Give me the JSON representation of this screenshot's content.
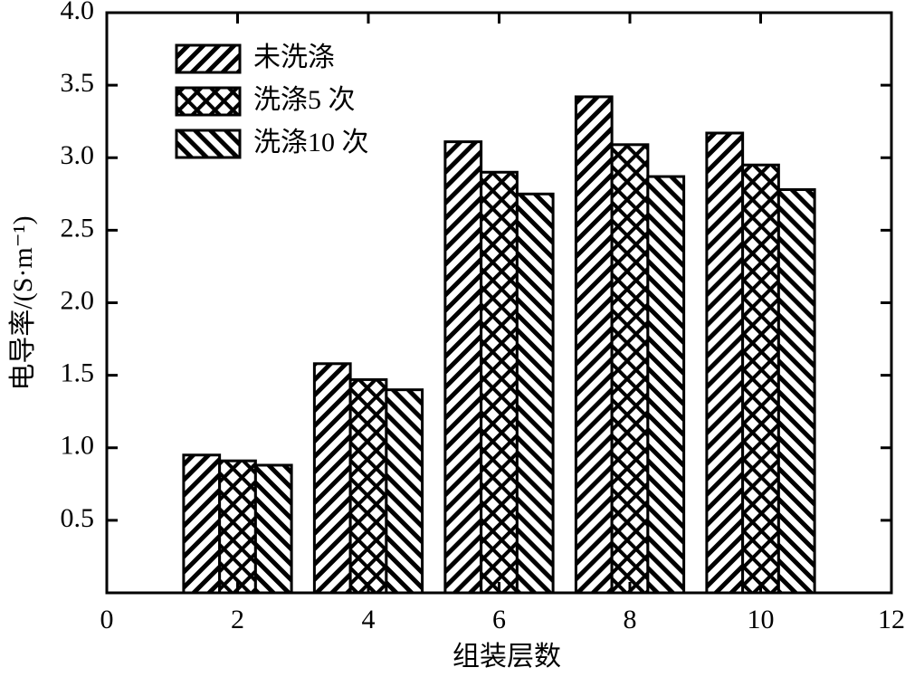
{
  "chart_data": {
    "type": "bar",
    "x_label": "组装层数",
    "y_label": "电导率/(S·m⁻¹)",
    "x": [
      2,
      4,
      6,
      8,
      10
    ],
    "series": [
      {
        "name": "未洗涤",
        "color": "#000000",
        "hatch": "back-diagonal",
        "values": [
          0.95,
          1.58,
          3.11,
          3.42,
          3.17
        ]
      },
      {
        "name": "洗涤5 次",
        "color": "#000000",
        "hatch": "cross",
        "values": [
          0.91,
          1.47,
          2.9,
          3.09,
          2.95
        ]
      },
      {
        "name": "洗涤10 次",
        "color": "#000000",
        "hatch": "diagonal",
        "values": [
          0.88,
          1.4,
          2.75,
          2.87,
          2.78
        ]
      }
    ],
    "xlim": [
      0,
      12
    ],
    "xticks": [
      0,
      2,
      4,
      6,
      8,
      10,
      12
    ],
    "ylim": [
      0,
      4
    ],
    "yticks": [
      {
        "value": 0.5,
        "label": "0.5"
      },
      {
        "value": 1,
        "label": "1.0"
      },
      {
        "value": 1.5,
        "label": "1.5"
      },
      {
        "value": 2,
        "label": "2.0"
      },
      {
        "value": 2.5,
        "label": "2.5"
      },
      {
        "value": 3,
        "label": "3.0"
      },
      {
        "value": 3.5,
        "label": "3.5"
      },
      {
        "value": 4,
        "label": "4.0"
      }
    ],
    "legend": "top-left",
    "grid": false
  }
}
